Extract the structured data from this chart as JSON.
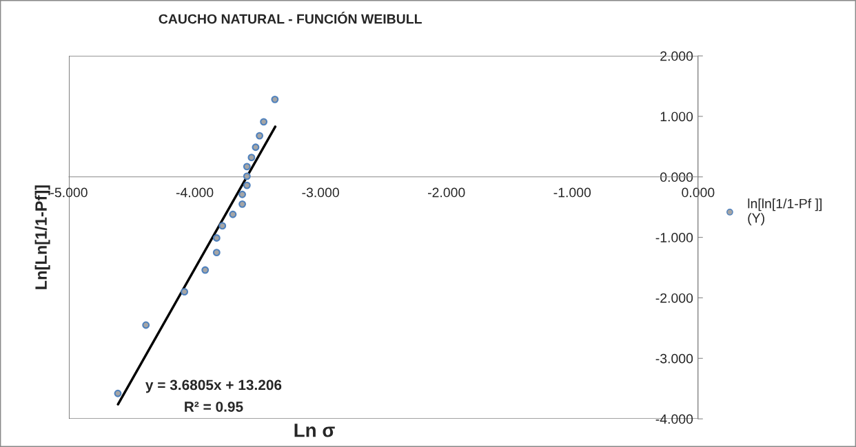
{
  "chart_data": {
    "type": "scatter",
    "title": "CAUCHO NATURAL - FUNCIÓN WEIBULL",
    "xlabel": "Ln σ",
    "ylabel": "Ln[Ln[1/1-Pf]]",
    "xlim": [
      -5,
      0
    ],
    "ylim": [
      -4,
      2
    ],
    "xticks": [
      {
        "value": -5,
        "label": "-5.000"
      },
      {
        "value": -4,
        "label": "-4.000"
      },
      {
        "value": -3,
        "label": "-3.000"
      },
      {
        "value": -2,
        "label": "-2.000"
      },
      {
        "value": -1,
        "label": "-1.000"
      },
      {
        "value": 0,
        "label": "0.000"
      }
    ],
    "yticks": [
      {
        "value": -4,
        "label": "-4.000"
      },
      {
        "value": -3,
        "label": "-3.000"
      },
      {
        "value": -2,
        "label": "-2.000"
      },
      {
        "value": -1,
        "label": "-1.000"
      },
      {
        "value": 0,
        "label": "0.000"
      },
      {
        "value": 1,
        "label": "1.000"
      },
      {
        "value": 2,
        "label": "2.000"
      }
    ],
    "grid": false,
    "legend": "right",
    "marker": "circle",
    "annotations": [
      "y = 3.6805x + 13.206",
      "R² = 0.95"
    ],
    "series": [
      {
        "name": "ln[ln[1/1-Pf ]]\n(Y)",
        "color": "#4f81bd",
        "x": [
          -4.611,
          -4.388,
          -4.082,
          -3.917,
          -3.826,
          -3.826,
          -3.78,
          -3.697,
          -3.622,
          -3.622,
          -3.585,
          -3.585,
          -3.585,
          -3.549,
          -3.516,
          -3.485,
          -3.452,
          -3.363
        ],
        "values": [
          -3.58,
          -2.45,
          -1.9,
          -1.54,
          -1.25,
          -1.01,
          -0.81,
          -0.62,
          -0.45,
          -0.29,
          -0.14,
          0.01,
          0.17,
          0.32,
          0.49,
          0.68,
          0.91,
          1.28
        ]
      },
      {
        "type": "line",
        "marker": "none",
        "color": "#000000",
        "x": [
          -4.61,
          -3.36
        ],
        "values": [
          -3.76,
          0.83
        ]
      }
    ]
  }
}
